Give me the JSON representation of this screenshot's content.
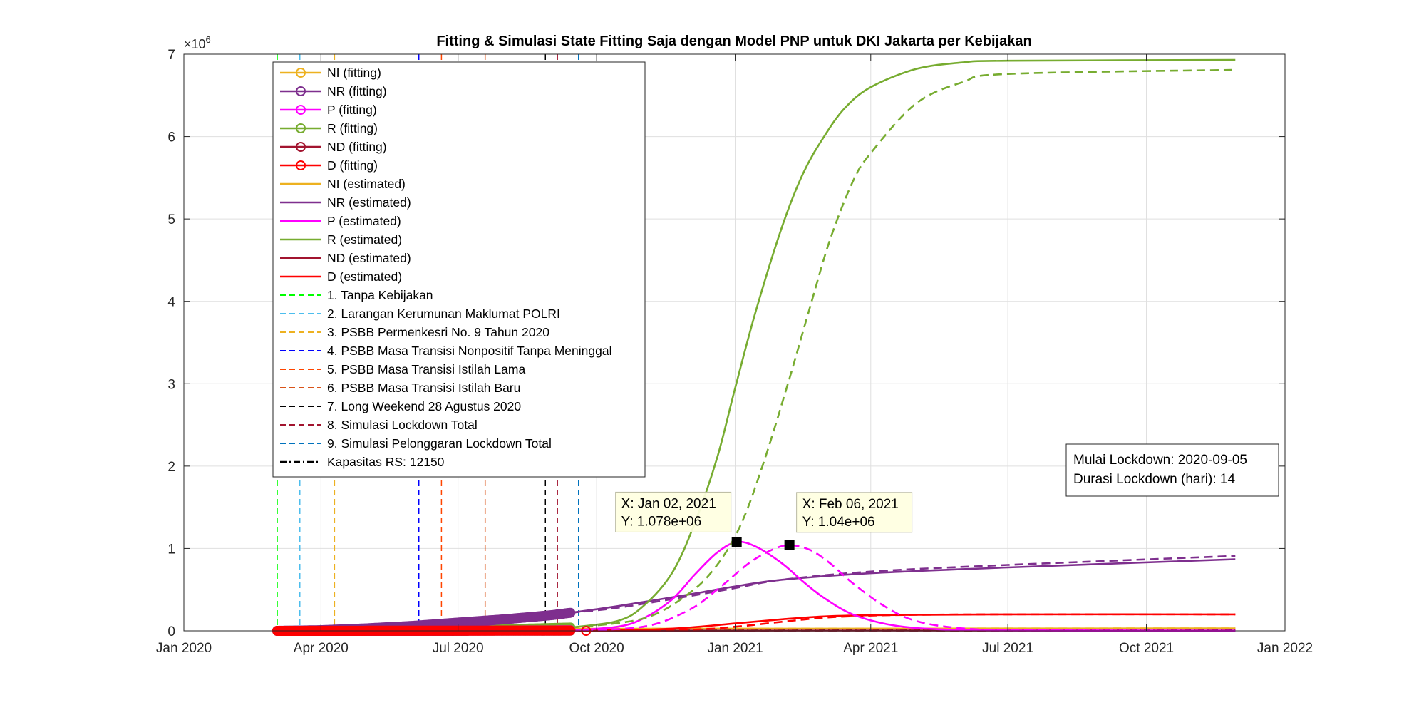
{
  "chart_data": {
    "type": "line",
    "title": "Fitting & Simulasi State Fitting Saja dengan Model PNP untuk DKI Jakarta per Kebijakan",
    "y_exponent_label": "×10",
    "y_exponent_power": "6",
    "xlim": [
      "2020-01-01",
      "2022-01-01"
    ],
    "ylim": [
      0,
      7
    ],
    "grid": true,
    "legend_position": "top-left",
    "x_ticks": [
      {
        "date": "2020-01-01",
        "label": "Jan 2020"
      },
      {
        "date": "2020-04-01",
        "label": "Apr 2020"
      },
      {
        "date": "2020-07-01",
        "label": "Jul 2020"
      },
      {
        "date": "2020-10-01",
        "label": "Oct 2020"
      },
      {
        "date": "2021-01-01",
        "label": "Jan 2021"
      },
      {
        "date": "2021-04-01",
        "label": "Apr 2021"
      },
      {
        "date": "2021-07-01",
        "label": "Jul 2021"
      },
      {
        "date": "2021-10-01",
        "label": "Oct 2021"
      },
      {
        "date": "2022-01-01",
        "label": "Jan 2022"
      }
    ],
    "y_ticks": [
      "0",
      "1",
      "2",
      "3",
      "4",
      "5",
      "6",
      "7"
    ],
    "colors": {
      "NI": "#EDB120",
      "NR": "#7E2F8E",
      "P": "#FF00FF",
      "R": "#77AC30",
      "ND": "#A2142F",
      "D": "#FF0000",
      "capacity": "#000000"
    },
    "fitting_series": [
      {
        "name": "NI (fitting)",
        "key": "NI",
        "x": [
          "2020-03-03",
          "2020-05-01",
          "2020-07-01",
          "2020-09-14"
        ],
        "y": [
          0.0,
          0.004,
          0.012,
          0.025
        ]
      },
      {
        "name": "NR (fitting)",
        "key": "NR",
        "x": [
          "2020-03-03",
          "2020-04-01",
          "2020-05-01",
          "2020-06-01",
          "2020-07-01",
          "2020-08-01",
          "2020-09-01",
          "2020-09-14"
        ],
        "y": [
          0.0,
          0.008,
          0.03,
          0.06,
          0.1,
          0.14,
          0.19,
          0.22
        ]
      },
      {
        "name": "P (fitting)",
        "key": "P",
        "x": [
          "2020-03-03",
          "2020-06-01",
          "2020-09-14"
        ],
        "y": [
          0.0,
          0.002,
          0.006
        ]
      },
      {
        "name": "R (fitting)",
        "key": "R",
        "x": [
          "2020-03-03",
          "2020-06-01",
          "2020-08-01",
          "2020-09-14"
        ],
        "y": [
          0.0,
          0.005,
          0.02,
          0.04
        ]
      },
      {
        "name": "ND (fitting)",
        "key": "ND",
        "x": [
          "2020-03-03",
          "2020-09-14"
        ],
        "y": [
          0.0,
          0.002
        ]
      },
      {
        "name": "D (fitting)",
        "key": "D",
        "x": [
          "2020-03-03",
          "2020-06-01",
          "2020-09-14"
        ],
        "y": [
          0.0,
          0.002,
          0.004
        ]
      }
    ],
    "estimated_series": [
      {
        "name": "NI (estimated)",
        "key": "NI",
        "solid": {
          "x": [
            "2020-09-14",
            "2021-11-29"
          ],
          "y": [
            0.025,
            0.03
          ]
        },
        "dashed": {
          "x": [
            "2020-09-14",
            "2021-11-29"
          ],
          "y": [
            0.025,
            0.03
          ]
        }
      },
      {
        "name": "NR (estimated)",
        "key": "NR",
        "solid": {
          "x": [
            "2020-09-14",
            "2020-10-15",
            "2020-12-01",
            "2021-01-01",
            "2021-02-01",
            "2021-04-01",
            "2021-07-01",
            "2021-11-29"
          ],
          "y": [
            0.22,
            0.3,
            0.44,
            0.54,
            0.62,
            0.7,
            0.77,
            0.87
          ]
        },
        "dashed": {
          "x": [
            "2020-09-14",
            "2020-10-15",
            "2020-12-01",
            "2021-01-01",
            "2021-02-01",
            "2021-04-01",
            "2021-07-01",
            "2021-11-29"
          ],
          "y": [
            0.22,
            0.28,
            0.42,
            0.52,
            0.62,
            0.72,
            0.8,
            0.91
          ]
        }
      },
      {
        "name": "P (estimated)",
        "key": "P",
        "solid": {
          "x": [
            "2020-09-14",
            "2020-10-15",
            "2020-11-01",
            "2020-11-20",
            "2020-12-05",
            "2020-12-20",
            "2021-01-02",
            "2021-01-15",
            "2021-02-01",
            "2021-02-15",
            "2021-03-01",
            "2021-03-20",
            "2021-04-15",
            "2021-05-15",
            "2021-07-01",
            "2021-11-29"
          ],
          "y": [
            0.005,
            0.05,
            0.15,
            0.38,
            0.68,
            0.95,
            1.078,
            1.02,
            0.82,
            0.6,
            0.4,
            0.2,
            0.07,
            0.02,
            0.004,
            0.001
          ]
        },
        "dashed": {
          "x": [
            "2020-09-14",
            "2020-11-01",
            "2020-12-01",
            "2020-12-20",
            "2021-01-10",
            "2021-01-25",
            "2021-02-06",
            "2021-02-20",
            "2021-03-05",
            "2021-03-20",
            "2021-04-10",
            "2021-05-01",
            "2021-06-01",
            "2021-07-15",
            "2021-11-29"
          ],
          "y": [
            0.003,
            0.05,
            0.25,
            0.5,
            0.82,
            0.98,
            1.04,
            0.98,
            0.82,
            0.58,
            0.3,
            0.12,
            0.03,
            0.008,
            0.001
          ]
        }
      },
      {
        "name": "R (estimated)",
        "key": "R",
        "solid": {
          "x": [
            "2020-09-14",
            "2020-10-15",
            "2020-11-01",
            "2020-11-20",
            "2020-12-05",
            "2020-12-20",
            "2021-01-01",
            "2021-01-15",
            "2021-02-01",
            "2021-02-15",
            "2021-03-01",
            "2021-03-15",
            "2021-04-01",
            "2021-05-01",
            "2021-06-01",
            "2021-07-01",
            "2021-11-29"
          ],
          "y": [
            0.04,
            0.12,
            0.3,
            0.7,
            1.3,
            2.1,
            2.95,
            3.9,
            4.9,
            5.55,
            6.0,
            6.35,
            6.6,
            6.82,
            6.9,
            6.92,
            6.93
          ]
        },
        "dashed": {
          "x": [
            "2020-09-14",
            "2020-11-01",
            "2020-12-01",
            "2020-12-20",
            "2021-01-05",
            "2021-01-20",
            "2021-02-05",
            "2021-02-20",
            "2021-03-05",
            "2021-03-20",
            "2021-04-01",
            "2021-05-01",
            "2021-06-01",
            "2021-07-01",
            "2021-11-29"
          ],
          "y": [
            0.04,
            0.15,
            0.45,
            0.8,
            1.3,
            2.05,
            3.0,
            3.95,
            4.75,
            5.45,
            5.8,
            6.4,
            6.66,
            6.76,
            6.81
          ]
        }
      },
      {
        "name": "ND (estimated)",
        "key": "ND",
        "solid": {
          "x": [
            "2020-09-14",
            "2021-11-29"
          ],
          "y": [
            0.003,
            0.004
          ]
        },
        "dashed": {
          "x": [
            "2020-09-14",
            "2021-11-29"
          ],
          "y": [
            0.003,
            0.004
          ]
        }
      },
      {
        "name": "D (estimated)",
        "key": "D",
        "solid": {
          "x": [
            "2020-09-14",
            "2020-11-01",
            "2020-12-01",
            "2021-01-01",
            "2021-02-01",
            "2021-03-01",
            "2021-04-01",
            "2021-05-01",
            "2021-07-01",
            "2021-11-29"
          ],
          "y": [
            0.004,
            0.012,
            0.04,
            0.09,
            0.14,
            0.175,
            0.19,
            0.195,
            0.2,
            0.2
          ]
        },
        "dashed": {
          "x": [
            "2020-09-14",
            "2020-12-01",
            "2021-01-01",
            "2021-02-01",
            "2021-03-01",
            "2021-04-01",
            "2021-05-01",
            "2021-07-01",
            "2021-11-29"
          ],
          "y": [
            0.004,
            0.015,
            0.05,
            0.11,
            0.16,
            0.185,
            0.195,
            0.2,
            0.2
          ]
        }
      }
    ],
    "policies": [
      {
        "name": "1. Tanpa Kebijakan",
        "date": "2020-03-03",
        "color": "#00FF00"
      },
      {
        "name": "2. Larangan Kerumunan Maklumat POLRI",
        "date": "2020-03-18",
        "color": "#4DBEEE"
      },
      {
        "name": "3. PSBB Permenkesri No. 9 Tahun 2020",
        "date": "2020-04-10",
        "color": "#EDB120"
      },
      {
        "name": "4. PSBB Masa Transisi Nonpositif Tanpa Meninggal",
        "date": "2020-06-05",
        "color": "#0000FF"
      },
      {
        "name": "5. PSBB Masa Transisi Istilah Lama",
        "date": "2020-06-20",
        "color": "#FF4500"
      },
      {
        "name": "6. PSBB Masa Transisi Istilah Baru",
        "date": "2020-07-19",
        "color": "#D95319"
      },
      {
        "name": "7. Long Weekend 28 Agustus 2020",
        "date": "2020-08-28",
        "color": "#000000"
      },
      {
        "name": "8. Simulasi Lockdown Total",
        "date": "2020-09-05",
        "color": "#A2142F"
      },
      {
        "name": "9. Simulasi Pelonggaran Lockdown Total",
        "date": "2020-09-19",
        "color": "#0072BD"
      }
    ],
    "capacity": {
      "name": "Kapasitas RS: 12150",
      "value": 0.01215
    },
    "datatips": [
      {
        "x_label": "X: Jan 02, 2021",
        "y_label": "Y: 1.078e+06",
        "date": "2021-01-02",
        "value": 1.078
      },
      {
        "x_label": "X: Feb 06, 2021",
        "y_label": "Y: 1.04e+06",
        "date": "2021-02-06",
        "value": 1.04
      }
    ],
    "annotation": [
      "Mulai Lockdown: 2020-09-05",
      "Durasi Lockdown (hari): 14"
    ]
  }
}
